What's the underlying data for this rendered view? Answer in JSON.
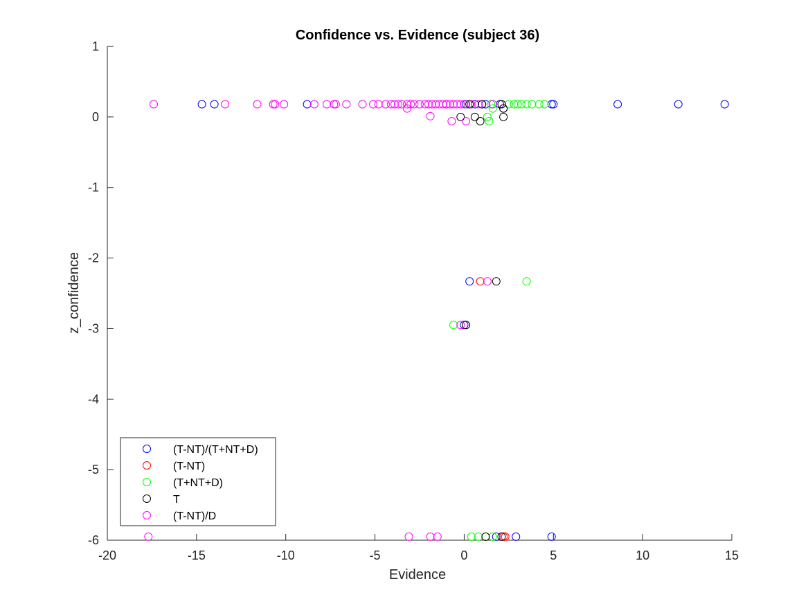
{
  "chart_data": {
    "type": "scatter",
    "title": "Confidence vs. Evidence (subject 36)",
    "xlabel": "Evidence",
    "ylabel": "z_confidence",
    "xlim": [
      -20,
      15
    ],
    "ylim": [
      -6,
      1
    ],
    "xticks": [
      -20,
      -15,
      -10,
      -5,
      0,
      5,
      10,
      15
    ],
    "yticks": [
      -6,
      -5,
      -4,
      -3,
      -2,
      -1,
      0,
      1
    ],
    "grid": false,
    "legend_position": "bottom-left",
    "marker": "open-circle",
    "series": [
      {
        "name": "(T-NT)/(T+NT+D)",
        "color": "#0000ff",
        "points": [
          [
            -14.7,
            0.18
          ],
          [
            -14.0,
            0.18
          ],
          [
            -8.8,
            0.18
          ],
          [
            0.1,
            0.18
          ],
          [
            0.6,
            0.18
          ],
          [
            1.2,
            0.18
          ],
          [
            2.0,
            0.18
          ],
          [
            4.9,
            0.18
          ],
          [
            5.0,
            0.18
          ],
          [
            8.6,
            0.18
          ],
          [
            12.0,
            0.18
          ],
          [
            14.6,
            0.18
          ],
          [
            0.3,
            -2.33
          ],
          [
            0.0,
            -2.95
          ],
          [
            1.8,
            -5.95
          ],
          [
            2.9,
            -5.95
          ],
          [
            4.9,
            -5.95
          ]
        ]
      },
      {
        "name": "(T-NT)",
        "color": "#ff0000",
        "points": [
          [
            -1.0,
            0.18
          ],
          [
            0.3,
            0.18
          ],
          [
            1.0,
            0.18
          ],
          [
            2.2,
            0.12
          ],
          [
            0.9,
            -2.33
          ],
          [
            0.1,
            -2.95
          ],
          [
            2.2,
            -5.95
          ],
          [
            2.3,
            -5.95
          ]
        ]
      },
      {
        "name": "(T+NT+D)",
        "color": "#00ff00",
        "points": [
          [
            0.2,
            0.18
          ],
          [
            1.5,
            0.18
          ],
          [
            2.5,
            0.18
          ],
          [
            2.8,
            0.18
          ],
          [
            3.0,
            0.18
          ],
          [
            3.2,
            0.18
          ],
          [
            3.5,
            0.18
          ],
          [
            3.8,
            0.18
          ],
          [
            4.2,
            0.18
          ],
          [
            4.5,
            0.18
          ],
          [
            1.6,
            0.12
          ],
          [
            1.3,
            0.0
          ],
          [
            1.4,
            -0.06
          ],
          [
            3.5,
            -2.33
          ],
          [
            -0.6,
            -2.95
          ],
          [
            0.4,
            -5.95
          ],
          [
            0.8,
            -5.95
          ],
          [
            1.2,
            -5.95
          ],
          [
            1.6,
            -5.95
          ]
        ]
      },
      {
        "name": "T",
        "color": "#000000",
        "points": [
          [
            0.3,
            0.18
          ],
          [
            1.0,
            0.18
          ],
          [
            2.1,
            0.18
          ],
          [
            2.2,
            0.12
          ],
          [
            -0.2,
            0.0
          ],
          [
            0.6,
            0.0
          ],
          [
            2.2,
            0.0
          ],
          [
            0.9,
            -0.06
          ],
          [
            1.8,
            -2.33
          ],
          [
            0.1,
            -2.95
          ],
          [
            1.2,
            -5.95
          ],
          [
            2.1,
            -5.95
          ]
        ]
      },
      {
        "name": "(T-NT)/D",
        "color": "#ff00ff",
        "points": [
          [
            -17.4,
            0.18
          ],
          [
            -13.4,
            0.18
          ],
          [
            -11.6,
            0.18
          ],
          [
            -10.7,
            0.18
          ],
          [
            -10.6,
            0.18
          ],
          [
            -10.1,
            0.18
          ],
          [
            -8.4,
            0.18
          ],
          [
            -7.7,
            0.18
          ],
          [
            -7.3,
            0.18
          ],
          [
            -7.2,
            0.18
          ],
          [
            -6.6,
            0.18
          ],
          [
            -5.7,
            0.18
          ],
          [
            -5.1,
            0.18
          ],
          [
            -4.8,
            0.18
          ],
          [
            -4.4,
            0.18
          ],
          [
            -4.1,
            0.18
          ],
          [
            -3.9,
            0.18
          ],
          [
            -3.7,
            0.18
          ],
          [
            -3.5,
            0.18
          ],
          [
            -3.2,
            0.18
          ],
          [
            -3.0,
            0.18
          ],
          [
            -2.8,
            0.18
          ],
          [
            -2.5,
            0.18
          ],
          [
            -2.2,
            0.18
          ],
          [
            -2.0,
            0.18
          ],
          [
            -1.8,
            0.18
          ],
          [
            -1.6,
            0.18
          ],
          [
            -1.4,
            0.18
          ],
          [
            -1.2,
            0.18
          ],
          [
            -1.0,
            0.18
          ],
          [
            -0.8,
            0.18
          ],
          [
            -0.6,
            0.18
          ],
          [
            -0.4,
            0.18
          ],
          [
            -0.2,
            0.18
          ],
          [
            0.0,
            0.18
          ],
          [
            0.4,
            0.18
          ],
          [
            0.8,
            0.18
          ],
          [
            1.6,
            0.18
          ],
          [
            -3.2,
            0.12
          ],
          [
            -1.9,
            0.01
          ],
          [
            -0.7,
            -0.06
          ],
          [
            0.1,
            -0.06
          ],
          [
            1.3,
            -2.33
          ],
          [
            -0.2,
            -2.95
          ],
          [
            -17.7,
            -5.95
          ],
          [
            -3.1,
            -5.95
          ],
          [
            -1.9,
            -5.95
          ],
          [
            -1.5,
            -5.95
          ]
        ]
      }
    ]
  }
}
